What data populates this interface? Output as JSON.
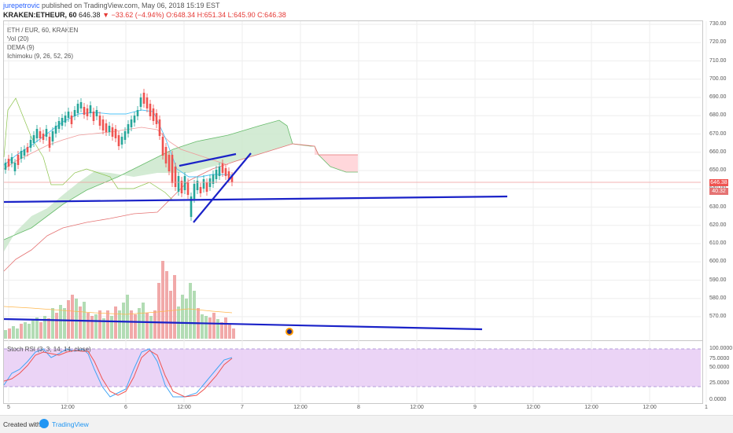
{
  "header": {
    "author": "jurepetrovic",
    "published_text": " published on TradingView.com, May 06, 2018 15:19 EST",
    "symbol": "KRAKEN:ETHEUR, 60",
    "last": "646.38",
    "change_arrow": "▼",
    "change": "−33.62 (−4.94%)",
    "ohlc": "O:648.34 H:651.34 L:645.90 C:646.38"
  },
  "indicators": {
    "title": "ETH / EUR, 60, KRAKEN",
    "vol": "Vol (20)",
    "dema": "DEMA (9)",
    "ichimoku": "Ichimoku (9, 26, 52, 26)"
  },
  "price_axis": {
    "labels": [
      "730.00",
      "720.00",
      "710.00",
      "700.00",
      "690.00",
      "680.00",
      "670.00",
      "660.00",
      "650.00",
      "640.00",
      "630.00",
      "620.00",
      "610.00",
      "600.00",
      "590.00",
      "580.00",
      "570.00"
    ],
    "last_price_tag": "646.38",
    "secondary_tag": "40.32",
    "last_tag_color": "#ef5350",
    "secondary_tag_color": "#e57373"
  },
  "stoch": {
    "title": "Stoch RSI (3, 3, 14, 14, close)",
    "labels": [
      "100.0000",
      "75.0000",
      "50.0000",
      "25.0000",
      "0.0000"
    ]
  },
  "time_axis": {
    "labels": [
      "5",
      "12:00",
      "6",
      "12:00",
      "7",
      "12:00",
      "8",
      "12:00",
      "9",
      "12:00",
      "12:00",
      "12:00",
      "1"
    ]
  },
  "footer": {
    "created_with": "Created with",
    "brand": "TradingView"
  },
  "colors": {
    "bull": "#26a69a",
    "bear": "#ef5350",
    "trendline": "#1a22c8",
    "cloud_bull": "#c8e6c9",
    "cloud_bear": "#ffcdd2",
    "stoch_band": "#e1bee7"
  }
}
